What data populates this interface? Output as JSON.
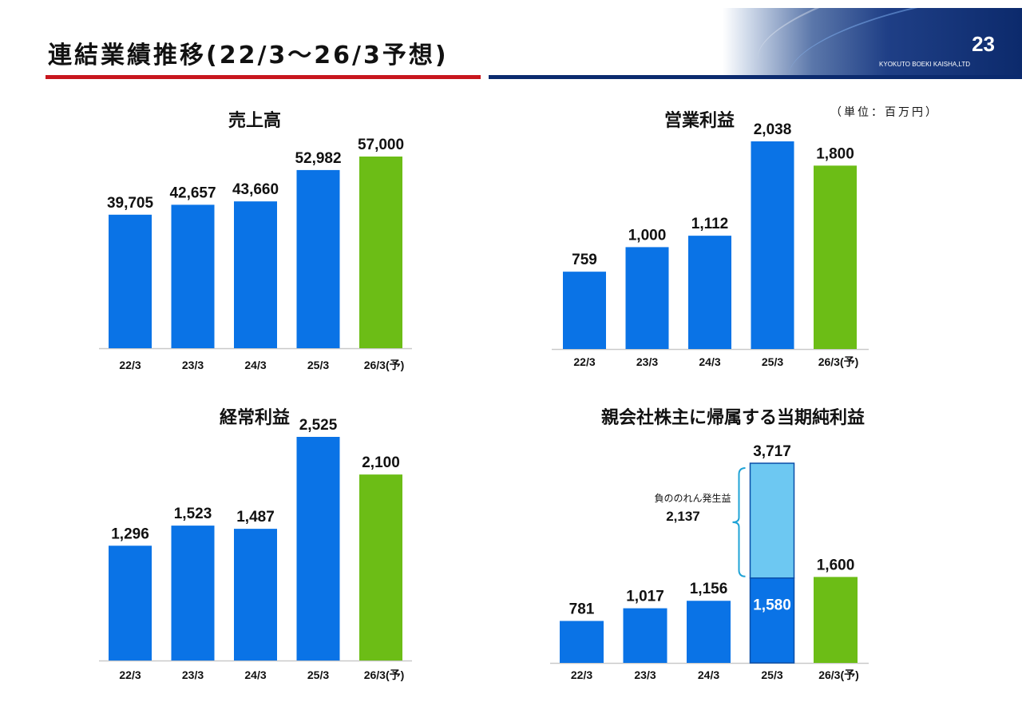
{
  "header": {
    "title": "連結業績推移(22/3～26/3予想)",
    "page_number": "23",
    "company": "KYOKUTO BOEKI KAISHA,LTD"
  },
  "unit_label": "（単位：百万円）",
  "colors": {
    "actual": "#0a73e6",
    "forecast": "#6cbd16",
    "gain": "#6dc8f2",
    "accent_red": "#c8161d",
    "accent_navy": "#0b2a6e"
  },
  "chart_data": [
    {
      "type": "bar",
      "title": "売上高",
      "categories": [
        "22/3",
        "23/3",
        "24/3",
        "25/3",
        "26/3(予)"
      ],
      "values": [
        39705,
        42657,
        43660,
        52982,
        57000
      ],
      "value_labels": [
        "39,705",
        "42,657",
        "43,660",
        "52,982",
        "57,000"
      ],
      "forecast_index": 4,
      "ylim": [
        0,
        62000
      ]
    },
    {
      "type": "bar",
      "title": "営業利益",
      "categories": [
        "22/3",
        "23/3",
        "24/3",
        "25/3",
        "26/3(予)"
      ],
      "values": [
        759,
        1000,
        1112,
        2038,
        1800
      ],
      "value_labels": [
        "759",
        "1,000",
        "1,112",
        "2,038",
        "1,800"
      ],
      "forecast_index": 4,
      "ylim": [
        0,
        2160
      ]
    },
    {
      "type": "bar",
      "title": "経常利益",
      "categories": [
        "22/3",
        "23/3",
        "24/3",
        "25/3",
        "26/3(予)"
      ],
      "values": [
        1296,
        1523,
        1487,
        2525,
        2100
      ],
      "value_labels": [
        "1,296",
        "1,523",
        "1,487",
        "2,525",
        "2,100"
      ],
      "forecast_index": 4,
      "ylim": [
        0,
        2680
      ]
    },
    {
      "type": "bar",
      "title": "親会社株主に帰属する当期純利益",
      "categories": [
        "22/3",
        "23/3",
        "24/3",
        "25/3",
        "26/3(予)"
      ],
      "values": [
        781,
        1017,
        1156,
        3717,
        1600
      ],
      "value_labels": [
        "781",
        "1,017",
        "1,156",
        "3,717",
        "1,600"
      ],
      "forecast_index": 4,
      "ylim": [
        0,
        3900
      ],
      "stacked_breakdown": {
        "index": 3,
        "base_value": 1580,
        "base_label": "1,580",
        "gain_value": 2137,
        "gain_label": "2,137",
        "gain_name": "負ののれん発生益"
      }
    }
  ]
}
